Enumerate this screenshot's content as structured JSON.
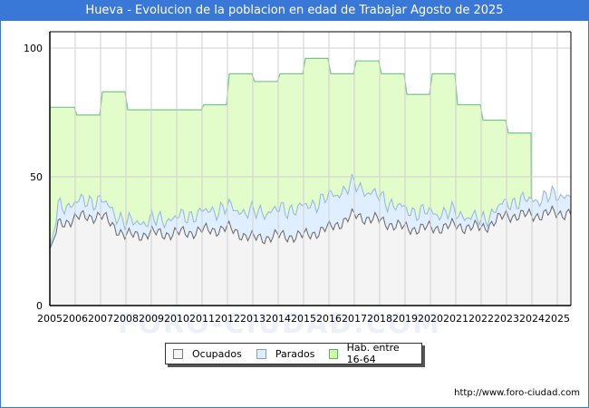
{
  "title": "Hueva - Evolucion de la poblacion en edad de Trabajar Agosto de 2025",
  "footer": "http://www.foro-ciudad.com",
  "watermark": "FORO-CIUDAD.COM",
  "legend": [
    {
      "label": "Ocupados",
      "color": "#f4f4f4",
      "border": "#777777"
    },
    {
      "label": "Parados",
      "color": "#ddeeff",
      "border": "#7a9fd8"
    },
    {
      "label": "Hab. entre 16-64",
      "color": "#ccffaa",
      "border": "#66aa66"
    }
  ],
  "colors": {
    "header": "#3a78d8",
    "hab_fill": "#e2fcca",
    "hab_line": "#80c090",
    "parados_fill": "#e0efff",
    "parados_line": "#92b4e6",
    "ocupados_fill": "#f4f4f4",
    "ocupados_line": "#666666",
    "grid": "#d0d0d0"
  },
  "chart_data": {
    "type": "area",
    "title": "Hueva - Evolucion de la poblacion en edad de Trabajar Agosto de 2025",
    "xlabel": "",
    "ylabel": "",
    "ylim": [
      0,
      100
    ],
    "yticks": [
      0,
      50,
      100
    ],
    "xticks": [
      "2005",
      "2006",
      "2007",
      "2008",
      "2009",
      "2010",
      "2011",
      "2012",
      "2013",
      "2014",
      "2015",
      "2016",
      "2017",
      "2018",
      "2019",
      "2020",
      "2021",
      "2022",
      "2023",
      "2024",
      "2025"
    ],
    "grid": true,
    "legend_position": "bottom",
    "series": [
      {
        "name": "Hab. entre 16-64",
        "x": [
          "2005",
          "2006",
          "2007",
          "2008",
          "2009",
          "2010",
          "2011",
          "2012",
          "2013",
          "2014",
          "2015",
          "2016",
          "2017",
          "2018",
          "2019",
          "2020",
          "2021",
          "2022",
          "2023"
        ],
        "values": [
          77,
          74,
          83,
          76,
          76,
          76,
          78,
          90,
          87,
          90,
          96,
          90,
          95,
          90,
          82,
          90,
          78,
          72,
          67
        ]
      },
      {
        "name": "Parados",
        "note": "upper line = Ocupados + Parados, yearly approximate averages",
        "x": [
          "2005",
          "2006",
          "2007",
          "2008",
          "2009",
          "2010",
          "2011",
          "2012",
          "2013",
          "2014",
          "2015",
          "2016",
          "2017",
          "2018",
          "2019",
          "2020",
          "2021",
          "2022",
          "2023",
          "2024",
          "2025"
        ],
        "values": [
          7,
          6,
          6,
          5,
          5,
          6,
          7,
          8,
          10,
          10,
          11,
          12,
          12,
          9,
          7,
          6,
          5,
          3,
          5,
          6,
          7
        ]
      },
      {
        "name": "Ocupados",
        "x": [
          "2005",
          "2006",
          "2007",
          "2008",
          "2009",
          "2010",
          "2011",
          "2012",
          "2013",
          "2014",
          "2015",
          "2016",
          "2017",
          "2018",
          "2019",
          "2020",
          "2021",
          "2022",
          "2023",
          "2024",
          "2025"
        ],
        "values": [
          30,
          34,
          35,
          27,
          28,
          28,
          29,
          30,
          26,
          27,
          27,
          30,
          35,
          33,
          30,
          30,
          31,
          30,
          35,
          35,
          36
        ]
      }
    ]
  }
}
